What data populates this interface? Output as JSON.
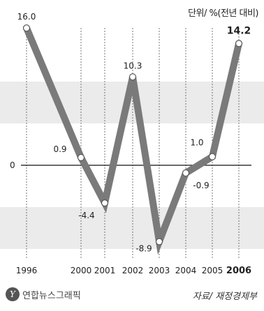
{
  "unit_label": "단위/ %(전년 대비)",
  "source_label": "자료/ 재정경제부",
  "logo_text": "연합뉴스그래픽",
  "colors": {
    "line": "#7a7a7a",
    "band": "#ebebeb",
    "point_stroke": "#555555",
    "point_fill": "#ffffff"
  },
  "chart_data": {
    "type": "line",
    "title": "",
    "xlabel": "",
    "ylabel": "단위/ %(전년 대비)",
    "categories": [
      "1996",
      "2000",
      "2001",
      "2002",
      "2003",
      "2004",
      "2005",
      "2006"
    ],
    "values": [
      16.0,
      0.9,
      -4.4,
      10.3,
      -8.9,
      -0.9,
      1.0,
      14.2
    ],
    "value_labels": [
      "16.0",
      "0.9",
      "-4.4",
      "10.3",
      "-8.9",
      "-0.9",
      "1.0",
      "14.2"
    ],
    "y_tick_labels": [
      "0"
    ],
    "bold_categories": [
      "2006"
    ],
    "ylim": [
      -12,
      18
    ]
  }
}
